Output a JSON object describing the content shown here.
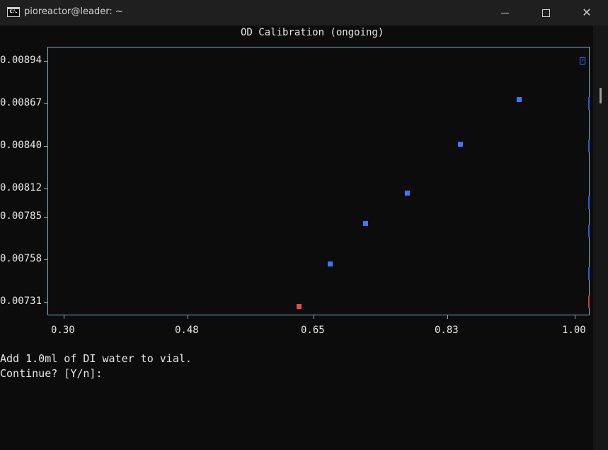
{
  "window": {
    "title": "pioreactor@leader: ~",
    "icon_label": "C:\\."
  },
  "chart_data": {
    "type": "scatter",
    "title": "OD Calibration (ongoing)",
    "xlabel": "",
    "ylabel": "",
    "xlim": [
      0.3,
      1.0
    ],
    "ylim": [
      0.00731,
      0.00894
    ],
    "x_ticks": [
      "0.30",
      "0.48",
      "0.65",
      "0.83",
      "1.00"
    ],
    "y_ticks": [
      "0.00894",
      "0.00867",
      "0.00840",
      "0.00812",
      "0.00785",
      "0.00758",
      "0.00731"
    ],
    "series": [
      {
        "color": "#3b78ff",
        "x": [
          0.917,
          0.84,
          0.769,
          0.714,
          0.667
        ],
        "y": [
          0.00868,
          0.00838,
          0.00805,
          0.00784,
          0.00757
        ]
      },
      {
        "color": "#e74856",
        "x": [
          0.626
        ],
        "y": [
          0.00728
        ]
      }
    ],
    "grid": false
  },
  "terminal": {
    "prompt_line_1": "Add 1.0ml of DI water to vial.",
    "prompt_line_2": "Continue? [Y/n]: "
  }
}
